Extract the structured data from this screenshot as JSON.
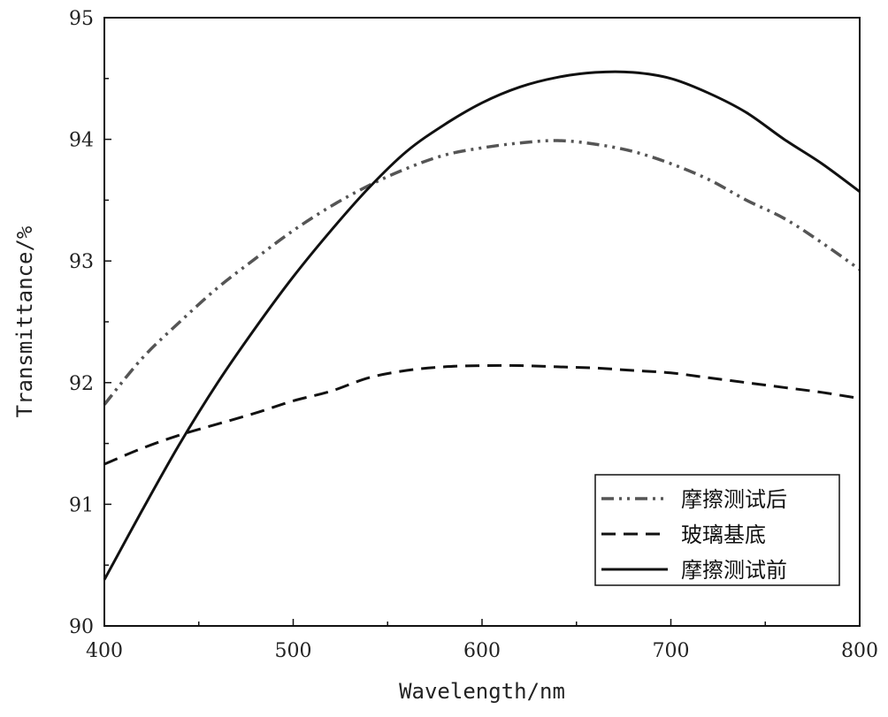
{
  "chart_data": {
    "type": "line",
    "title": "",
    "xlabel": "Wavelength/nm",
    "ylabel": "Transmittance/%",
    "xlim": [
      400,
      800
    ],
    "ylim": [
      90,
      95
    ],
    "xticks": [
      400,
      500,
      600,
      700,
      800
    ],
    "yticks": [
      90,
      91,
      92,
      93,
      94,
      95
    ],
    "grid": false,
    "legend_position": "bottom-right",
    "series": [
      {
        "name": "摩擦测试后",
        "style": "dash-dot-dot",
        "color": "#555555",
        "x": [
          400,
          420,
          440,
          460,
          480,
          500,
          520,
          540,
          560,
          580,
          600,
          620,
          640,
          660,
          680,
          700,
          720,
          740,
          760,
          780,
          800
        ],
        "y": [
          91.82,
          92.2,
          92.5,
          92.78,
          93.02,
          93.25,
          93.45,
          93.62,
          93.76,
          93.87,
          93.93,
          93.97,
          93.99,
          93.96,
          93.9,
          93.8,
          93.67,
          93.5,
          93.35,
          93.15,
          92.93
        ]
      },
      {
        "name": "玻璃基底",
        "style": "dashed",
        "color": "#111111",
        "x": [
          400,
          420,
          440,
          460,
          480,
          500,
          520,
          540,
          560,
          580,
          600,
          620,
          640,
          660,
          680,
          700,
          720,
          740,
          760,
          780,
          800
        ],
        "y": [
          91.33,
          91.46,
          91.57,
          91.66,
          91.75,
          91.85,
          91.93,
          92.04,
          92.1,
          92.13,
          92.14,
          92.14,
          92.13,
          92.12,
          92.1,
          92.08,
          92.04,
          92.0,
          91.96,
          91.92,
          91.87
        ]
      },
      {
        "name": "摩擦测试前",
        "style": "solid",
        "color": "#111111",
        "x": [
          400,
          420,
          440,
          460,
          480,
          500,
          520,
          540,
          560,
          580,
          600,
          620,
          640,
          660,
          680,
          700,
          720,
          740,
          760,
          780,
          800
        ],
        "y": [
          90.38,
          90.95,
          91.5,
          92.0,
          92.45,
          92.87,
          93.25,
          93.6,
          93.9,
          94.12,
          94.3,
          94.43,
          94.51,
          94.55,
          94.55,
          94.5,
          94.38,
          94.22,
          94.0,
          93.8,
          93.57
        ]
      }
    ]
  }
}
